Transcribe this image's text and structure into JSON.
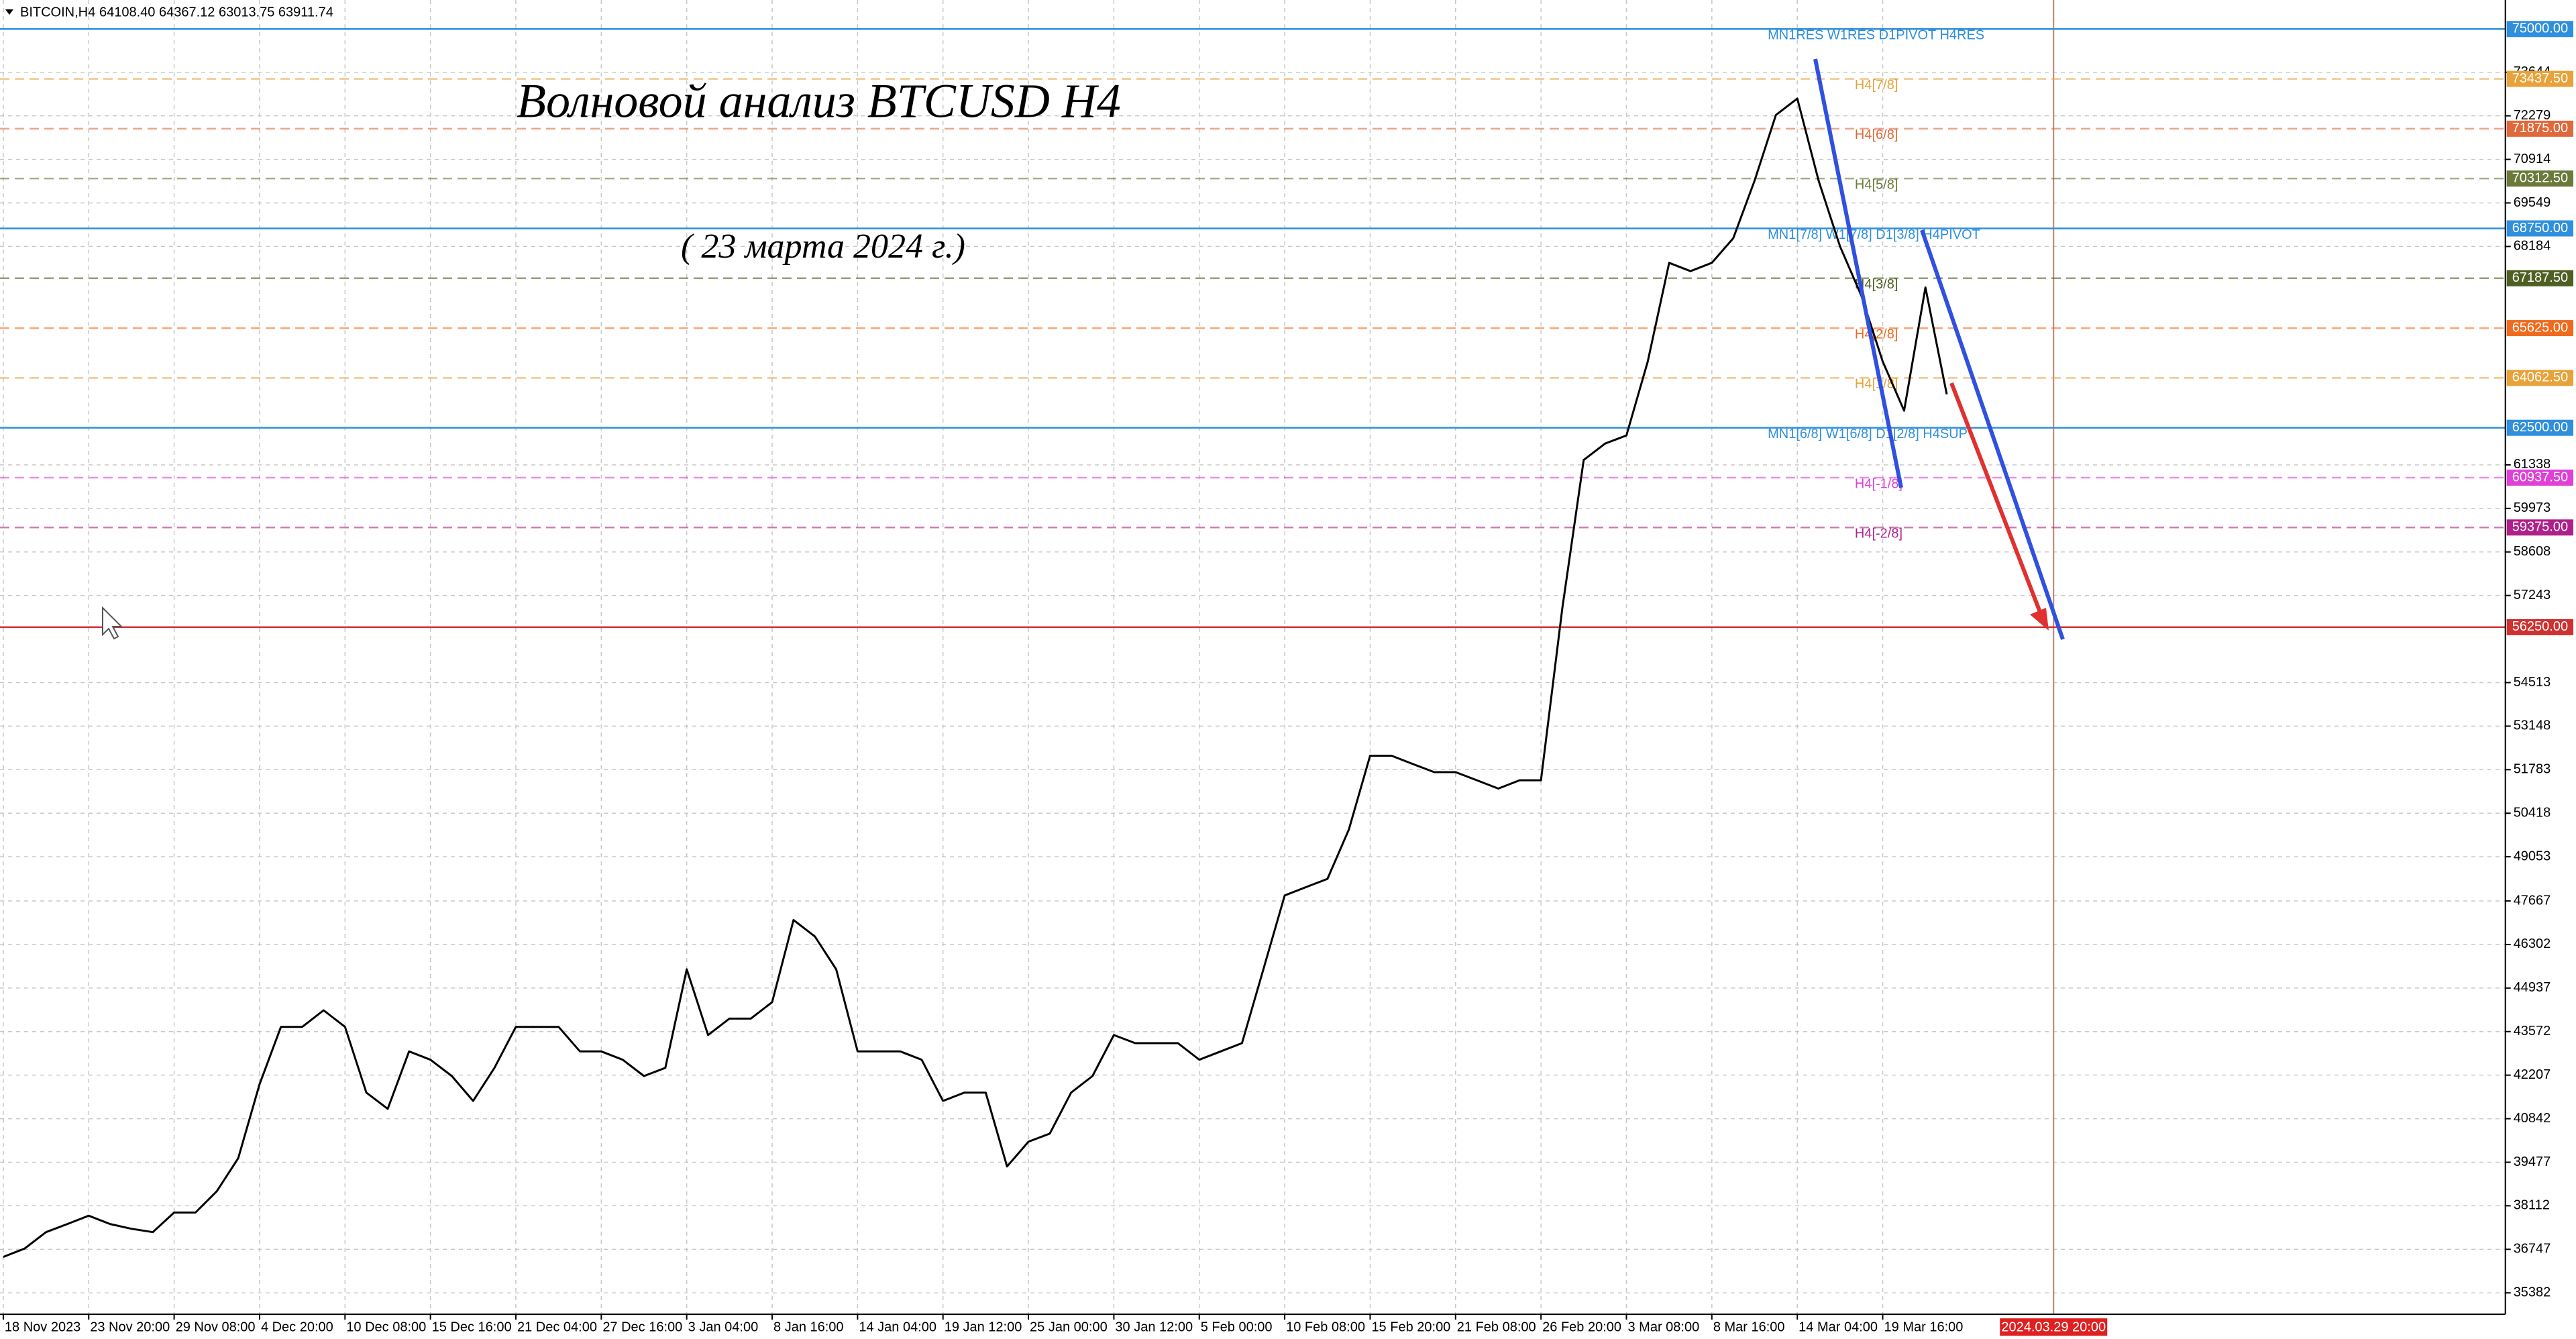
{
  "header": {
    "symbol": "BITCOIN,H4",
    "ohlc": "64108.40 64367.12 63013.75 63911.74"
  },
  "chart_data": {
    "type": "line",
    "title": "Волновой анализ BTCUSD H4",
    "subtitle": "( 23 марта 2024 г.)",
    "color": "#000000",
    "categories": [
      "18 Nov 2023",
      null,
      null,
      null,
      "23 Nov 20:00",
      null,
      null,
      null,
      "29 Nov 08:00",
      null,
      null,
      null,
      "4 Dec 20:00",
      null,
      null,
      null,
      "10 Dec 08:00",
      null,
      null,
      null,
      "15 Dec 16:00",
      null,
      null,
      null,
      "21 Dec 04:00",
      null,
      null,
      null,
      "27 Dec 16:00",
      null,
      null,
      null,
      "3 Jan 04:00",
      null,
      null,
      null,
      "8 Jan 16:00",
      null,
      null,
      null,
      "14 Jan 04:00",
      null,
      null,
      null,
      "19 Jan 12:00",
      null,
      null,
      null,
      "25 Jan 00:00",
      null,
      null,
      null,
      "30 Jan 12:00",
      null,
      null,
      null,
      "5 Feb 00:00",
      null,
      null,
      null,
      "10 Feb 08:00",
      null,
      null,
      null,
      "15 Feb 20:00",
      null,
      null,
      null,
      "21 Feb 08:00",
      null,
      null,
      null,
      "26 Feb 20:00",
      null,
      null,
      null,
      "3 Mar 08:00",
      null,
      null,
      null,
      "8 Mar 16:00",
      null,
      null,
      null,
      "14 Mar 04:00",
      null,
      null,
      null,
      "19 Mar 16:00",
      null,
      null,
      null,
      null,
      null,
      null,
      null,
      "2024.03.29 20:00"
    ],
    "values": [
      36510,
      36770,
      37285,
      37540,
      37800,
      37540,
      37390,
      37285,
      37900,
      37900,
      38570,
      39600,
      41920,
      43720,
      43720,
      44240,
      43720,
      41660,
      41150,
      42950,
      42690,
      42180,
      41400,
      42435,
      43720,
      43720,
      43720,
      42950,
      42950,
      42690,
      42180,
      42435,
      45525,
      43465,
      43980,
      43980,
      44495,
      47070,
      46555,
      45525,
      42950,
      42950,
      42950,
      42690,
      41400,
      41660,
      41660,
      39345,
      40120,
      40375,
      41660,
      42180,
      43465,
      43210,
      43210,
      43210,
      42690,
      42950,
      43210,
      45525,
      47840,
      48100,
      48360,
      49900,
      52220,
      52220,
      51960,
      51705,
      51705,
      51450,
      51190,
      51450,
      51450,
      56855,
      61490,
      62005,
      62260,
      64580,
      67670,
      67410,
      67670,
      68440,
      70245,
      72305,
      72820,
      70245,
      68185,
      66640,
      64580,
      63035,
      66900,
      63550,
      null,
      null,
      null,
      null,
      null
    ],
    "ylim": [
      34710,
      75910
    ],
    "yticks": [
      73644,
      72279,
      70914,
      69549,
      68184,
      61338,
      59973,
      58608,
      57243,
      54513,
      53148,
      51783,
      50418,
      49053,
      47667,
      46302,
      44937,
      43572,
      42207,
      40842,
      39477,
      38112,
      36747,
      35382
    ],
    "grid": true,
    "levels": [
      {
        "value": 75000,
        "label": "75000.00",
        "name": "MN1RES W1RES D1PIVOT H4RES",
        "color": "#2f8fdc",
        "style": "solid"
      },
      {
        "value": 73437.5,
        "label": "73437.50",
        "name": "H4[7/8]",
        "color": "#e8a23a",
        "style": "dashed"
      },
      {
        "value": 71875,
        "label": "71875.00",
        "name": "H4[6/8]",
        "color": "#e0683a",
        "style": "dashed"
      },
      {
        "value": 70312.5,
        "label": "70312.50",
        "name": "H4[5/8]",
        "color": "#6b7a3a",
        "style": "dashed"
      },
      {
        "value": 68750,
        "label": "68750.00",
        "name": "MN1[7/8] W1[7/8] D1[3/8] H4PIVOT",
        "color": "#2f8fdc",
        "style": "solid"
      },
      {
        "value": 67187.5,
        "label": "67187.50",
        "name": "H4[3/8]",
        "color": "#4f5f22",
        "style": "dashed"
      },
      {
        "value": 65625,
        "label": "65625.00",
        "name": "H4[2/8]",
        "color": "#f06a1e",
        "style": "dashed"
      },
      {
        "value": 64062.5,
        "label": "64062.50",
        "name": "H4[1/8]",
        "color": "#e8a23a",
        "style": "dashed"
      },
      {
        "value": 62500,
        "label": "62500.00",
        "name": "MN1[6/8] W1[6/8] D1[2/8] H4SUP",
        "color": "#2f8fdc",
        "style": "solid"
      },
      {
        "value": 60937.5,
        "label": "60937.50",
        "name": "H4[-1/8]",
        "color": "#e040d8",
        "style": "dashed"
      },
      {
        "value": 59375,
        "label": "59375.00",
        "name": "H4[-2/8]",
        "color": "#b0208a",
        "style": "dashed"
      },
      {
        "value": 56250,
        "label": "56250.00",
        "color": "#d03030",
        "style": "solid"
      }
    ]
  }
}
